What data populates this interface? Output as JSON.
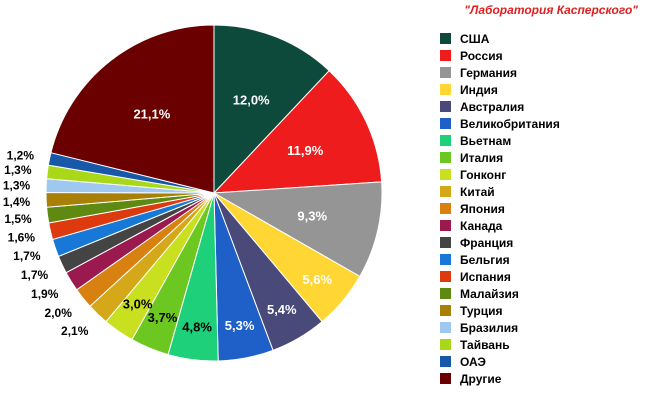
{
  "source_label": "\"Лаборатория Касперского\"",
  "chart_data": {
    "type": "pie",
    "title": "",
    "legend_position": "right",
    "start_angle_deg": 0,
    "direction": "clockwise",
    "slices": [
      {
        "name": "США",
        "value": 12.0,
        "label": "12,0%",
        "color": "#0d4a3c"
      },
      {
        "name": "Россия",
        "value": 11.9,
        "label": "11,9%",
        "color": "#ee1c1c"
      },
      {
        "name": "Германия",
        "value": 9.3,
        "label": "9,3%",
        "color": "#959595"
      },
      {
        "name": "Индия",
        "value": 5.6,
        "label": "5,6%",
        "color": "#ffd633"
      },
      {
        "name": "Австралия",
        "value": 5.4,
        "label": "5,4%",
        "color": "#4a4a7a"
      },
      {
        "name": "Великобритания",
        "value": 5.3,
        "label": "5,3%",
        "color": "#1f5fc8"
      },
      {
        "name": "Вьетнам",
        "value": 4.8,
        "label": "4,8%",
        "color": "#1ed07a"
      },
      {
        "name": "Италия",
        "value": 3.7,
        "label": "3,7%",
        "color": "#6cc820"
      },
      {
        "name": "Гонконг",
        "value": 3.0,
        "label": "3,0%",
        "color": "#c8e020"
      },
      {
        "name": "Китай",
        "value": 2.1,
        "label": "2,1%",
        "color": "#d4a818"
      },
      {
        "name": "Япония",
        "value": 2.0,
        "label": "2,0%",
        "color": "#d88010"
      },
      {
        "name": "Канада",
        "value": 1.9,
        "label": "1,9%",
        "color": "#9a1a50"
      },
      {
        "name": "Франция",
        "value": 1.7,
        "label": "1,7%",
        "color": "#444444"
      },
      {
        "name": "Бельгия",
        "value": 1.7,
        "label": "1,7%",
        "color": "#1878d8"
      },
      {
        "name": "Испания",
        "value": 1.6,
        "label": "1,6%",
        "color": "#dd3a10"
      },
      {
        "name": "Малайзия",
        "value": 1.5,
        "label": "1,5%",
        "color": "#5f8a12"
      },
      {
        "name": "Турция",
        "value": 1.4,
        "label": "1,4%",
        "color": "#a88008"
      },
      {
        "name": "Бразилия",
        "value": 1.3,
        "label": "1,3%",
        "color": "#9ec8f0"
      },
      {
        "name": "Тайвань",
        "value": 1.3,
        "label": "1,3%",
        "color": "#a8d818"
      },
      {
        "name": "ОАЭ",
        "value": 1.2,
        "label": "1,2%",
        "color": "#1858a8"
      },
      {
        "name": "Другие",
        "value": 21.1,
        "label": "21,1%",
        "color": "#6a0000"
      }
    ]
  }
}
